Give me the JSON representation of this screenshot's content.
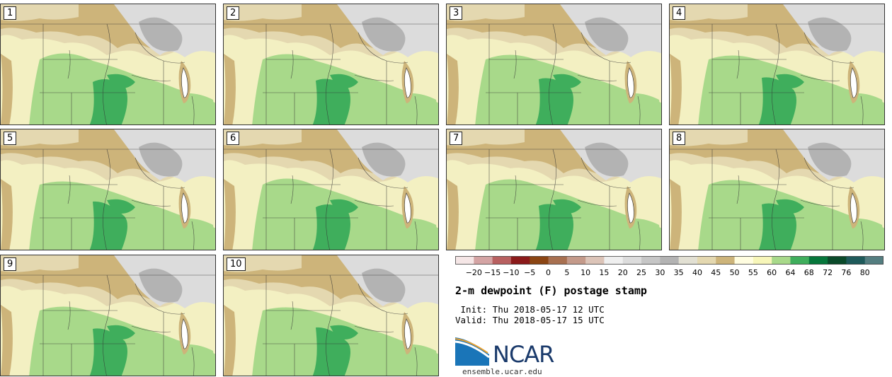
{
  "panels": [
    {
      "label": "1"
    },
    {
      "label": "2"
    },
    {
      "label": "3"
    },
    {
      "label": "4"
    },
    {
      "label": "5"
    },
    {
      "label": "6"
    },
    {
      "label": "7"
    },
    {
      "label": "8"
    },
    {
      "label": "9"
    },
    {
      "label": "10"
    }
  ],
  "colorbar": {
    "ticks": [
      "−20",
      "−15",
      "−10",
      "−5",
      "0",
      "5",
      "10",
      "15",
      "20",
      "25",
      "30",
      "35",
      "40",
      "45",
      "50",
      "55",
      "60",
      "64",
      "68",
      "72",
      "76",
      "80"
    ],
    "colors": [
      "#f5e6e6",
      "#d4a4a4",
      "#b86060",
      "#8b1a1a",
      "#8b4513",
      "#a87050",
      "#c49a8a",
      "#dcc4b8",
      "#efefef",
      "#dcdcdc",
      "#c6c6c6",
      "#b3b3b3",
      "#e2e0d3",
      "#e4d8b0",
      "#cdb47a",
      "#fffde0",
      "#f7f6b9",
      "#a8d98a",
      "#3fae5c",
      "#06773b",
      "#0a4a2a",
      "#1e5a5a",
      "#547e80"
    ]
  },
  "title": "2-m dewpoint (F) postage stamp",
  "init": " Init: Thu 2018-05-17 12 UTC",
  "valid": "Valid: Thu 2018-05-17 15 UTC",
  "logo": {
    "name": "NCAR",
    "url": "ensemble.ucar.edu"
  },
  "map_colors": {
    "background": "#f3f0c2",
    "tan": "#cdb47a",
    "light_tan": "#e4d8b0",
    "light_green": "#a8d98a",
    "dark_green": "#3fae5c",
    "gray": "#b3b3b3",
    "light_gray": "#dcdcdc",
    "line": "#333333"
  }
}
